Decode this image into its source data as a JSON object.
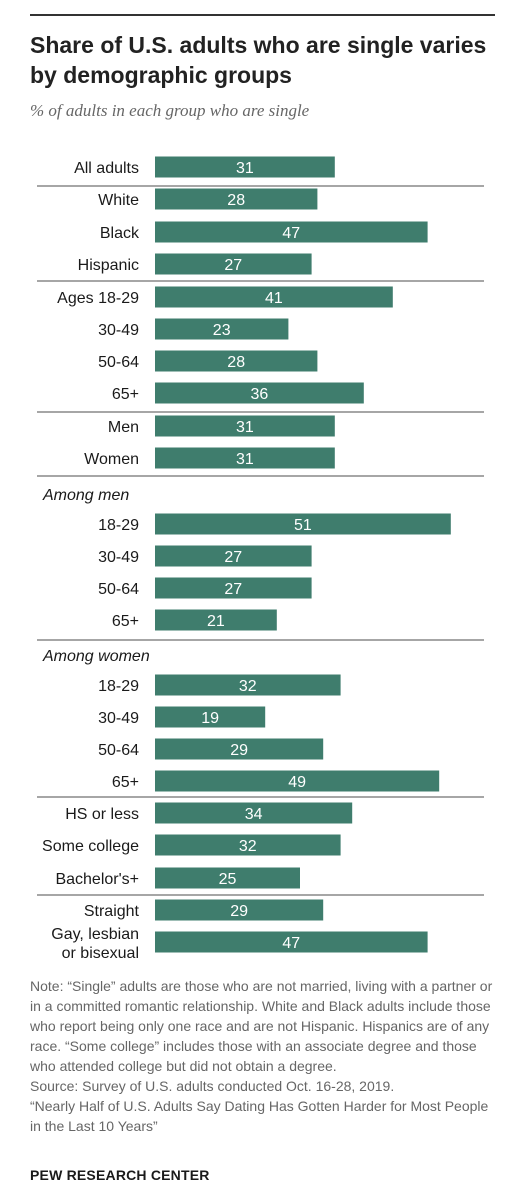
{
  "title": "Share of U.S. adults who are single varies by demographic groups",
  "subtitle": "% of adults in each group who are single",
  "colors": {
    "bar": "#3f7d6d",
    "bar_text": "#ffffff",
    "label": "#1a1a1a",
    "divider": "#888888"
  },
  "chart_data": {
    "type": "bar",
    "orientation": "horizontal",
    "xlim": [
      0,
      60
    ],
    "rows": [
      {
        "label": "All adults",
        "value": 31
      },
      {
        "label": "White",
        "value": 28
      },
      {
        "label": "Black",
        "value": 47
      },
      {
        "label": "Hispanic",
        "value": 27
      },
      {
        "label": "Ages 18-29",
        "value": 41
      },
      {
        "label": "30-49",
        "value": 23
      },
      {
        "label": "50-64",
        "value": 28
      },
      {
        "label": "65+",
        "value": 36
      },
      {
        "label": "Men",
        "value": 31
      },
      {
        "label": "Women",
        "value": 31
      },
      {
        "label": "Among men",
        "header": true
      },
      {
        "label": "18-29",
        "value": 51
      },
      {
        "label": "30-49",
        "value": 27
      },
      {
        "label": "50-64",
        "value": 27
      },
      {
        "label": "65+",
        "value": 21
      },
      {
        "label": "Among women",
        "header": true
      },
      {
        "label": "18-29",
        "value": 32
      },
      {
        "label": "30-49",
        "value": 19
      },
      {
        "label": "50-64",
        "value": 29
      },
      {
        "label": "65+",
        "value": 49
      },
      {
        "label": "HS or less",
        "value": 34
      },
      {
        "label": "Some college",
        "value": 32
      },
      {
        "label": "Bachelor's+",
        "value": 25
      },
      {
        "label": "Straight",
        "value": 29
      },
      {
        "label": "Gay, lesbian or bisexual",
        "lines": [
          "Gay, lesbian",
          "or bisexual"
        ],
        "value": 47
      }
    ]
  },
  "notes": [
    "Note: “Single” adults are those who are not married, living with a partner or in a committed romantic relationship. White and Black adults include those who report being only one race and are not Hispanic. Hispanics are of any race. “Some college” includes those with an associate degree and those who attended college but did not obtain a degree.",
    "Source: Survey of U.S. adults conducted Oct. 16-28, 2019.",
    "“Nearly Half of U.S. Adults Say Dating Has Gotten Harder for Most People in the Last 10 Years”"
  ],
  "brand": "PEW RESEARCH CENTER"
}
